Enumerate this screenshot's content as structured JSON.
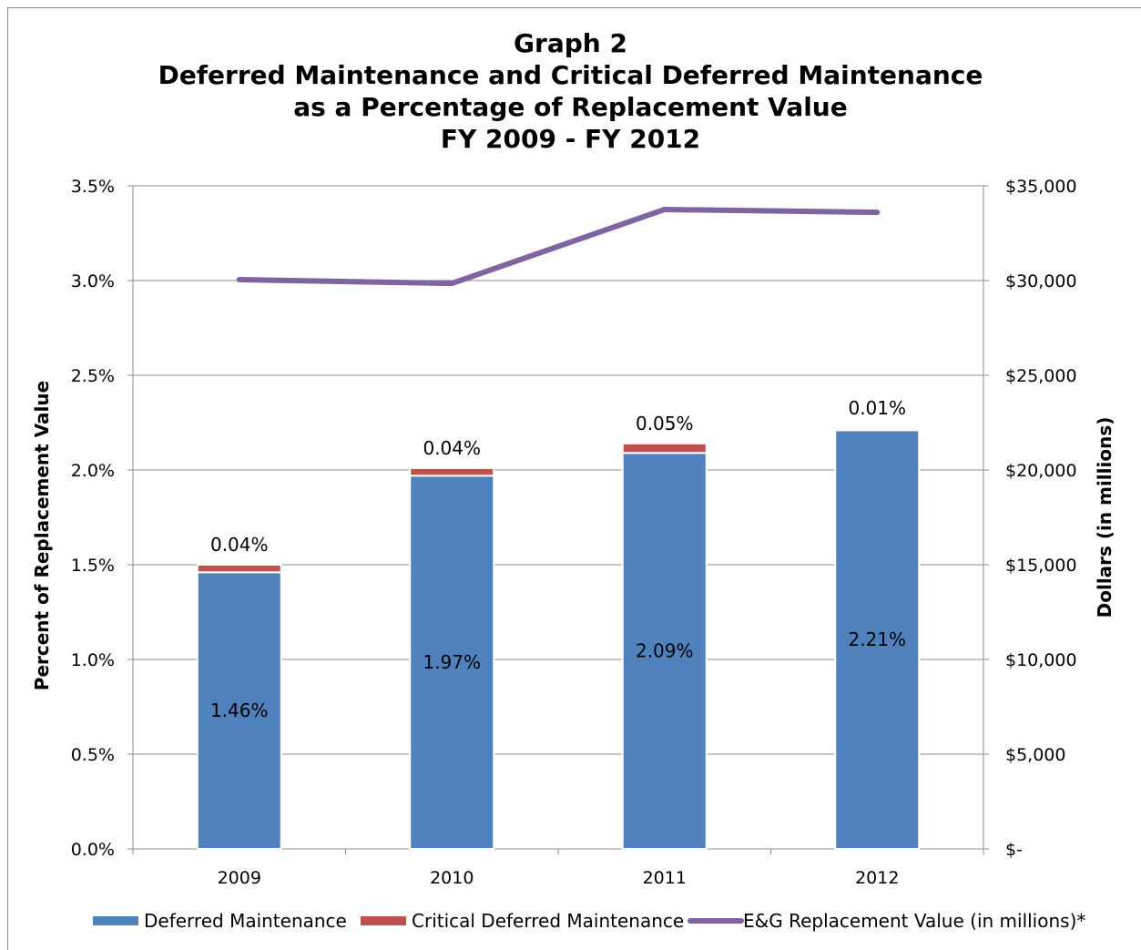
{
  "chart_data": {
    "type": "bar",
    "title_lines": [
      "Graph 2",
      "Deferred Maintenance and Critical Deferred Maintenance",
      "as a Percentage of Replacement Value",
      "FY 2009 - FY 2012"
    ],
    "categories": [
      "2009",
      "2010",
      "2011",
      "2012"
    ],
    "stacked": true,
    "series": [
      {
        "name": "Deferred Maintenance",
        "axis": "left",
        "type": "bar",
        "color": "#4f81bd",
        "values": [
          1.46,
          1.97,
          2.09,
          2.21
        ],
        "labels": [
          "1.46%",
          "1.97%",
          "2.09%",
          "2.21%"
        ]
      },
      {
        "name": "Critical Deferred Maintenance",
        "axis": "left",
        "type": "bar",
        "color": "#c0504d",
        "values": [
          0.04,
          0.04,
          0.05,
          0.01
        ],
        "labels": [
          "0.04%",
          "0.04%",
          "0.05%",
          "0.01%"
        ]
      },
      {
        "name": "E&G Replacement Value (in millions)*",
        "axis": "right",
        "type": "line",
        "color": "#8064a2",
        "values": [
          30050,
          29850,
          33750,
          33600
        ]
      }
    ],
    "y_left": {
      "label": "Percent of Replacement Value",
      "range": [
        0,
        3.5
      ],
      "ticks": [
        "0.0%",
        "0.5%",
        "1.0%",
        "1.5%",
        "2.0%",
        "2.5%",
        "3.0%",
        "3.5%"
      ]
    },
    "y_right": {
      "label": "Dollars (in millions)",
      "range": [
        0,
        35000
      ],
      "ticks": [
        "$-",
        "$5,000",
        "$10,000",
        "$15,000",
        "$20,000",
        "$25,000",
        "$30,000",
        "$35,000"
      ]
    },
    "grid": true,
    "legend_position": "bottom"
  }
}
